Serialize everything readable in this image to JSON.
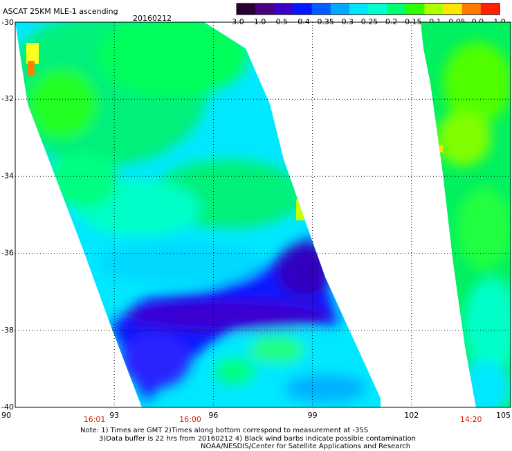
{
  "header": {
    "title": "ASCAT 25KM MLE-1 ascending",
    "date": "20160212"
  },
  "colorbar": {
    "labels": [
      "-3.0",
      "-1.0",
      "-0.5",
      "-0.4",
      "-0.35",
      "-0.3",
      "-0.25",
      "-0.2",
      "-0.15",
      "-0.1",
      "-0.05",
      "0.0",
      "1.0"
    ],
    "colors": [
      "#2a0033",
      "#4b0080",
      "#3a00c8",
      "#0018ff",
      "#005cff",
      "#00a8ff",
      "#00e6ff",
      "#00ffd0",
      "#00ff6e",
      "#30ff00",
      "#b0ff00",
      "#ffe600",
      "#ff7a00",
      "#ff2000"
    ]
  },
  "map": {
    "lon_range": [
      90,
      105
    ],
    "lat_range": [
      -40,
      -30
    ],
    "lon_ticks": [
      "90",
      "93",
      "96",
      "99",
      "102",
      "105"
    ],
    "lat_ticks": [
      "-30",
      "-32",
      "-34",
      "-36",
      "-38",
      "-40"
    ],
    "time_labels": [
      {
        "lon": 92.4,
        "text": "16:01"
      },
      {
        "lon": 95.3,
        "text": "16:00"
      },
      {
        "lon": 103.8,
        "text": "14:20"
      }
    ]
  },
  "notes": {
    "line1": "Note: 1) Times are GMT 2)Times along bottom correspond to measurement at -35S",
    "line2": "3)Data buffer is 22 hrs from 20160212 4) Black wind barbs indicate possible contamination",
    "line3": "NOAA/NESDIS/Center for Satellite Applications and Research"
  }
}
